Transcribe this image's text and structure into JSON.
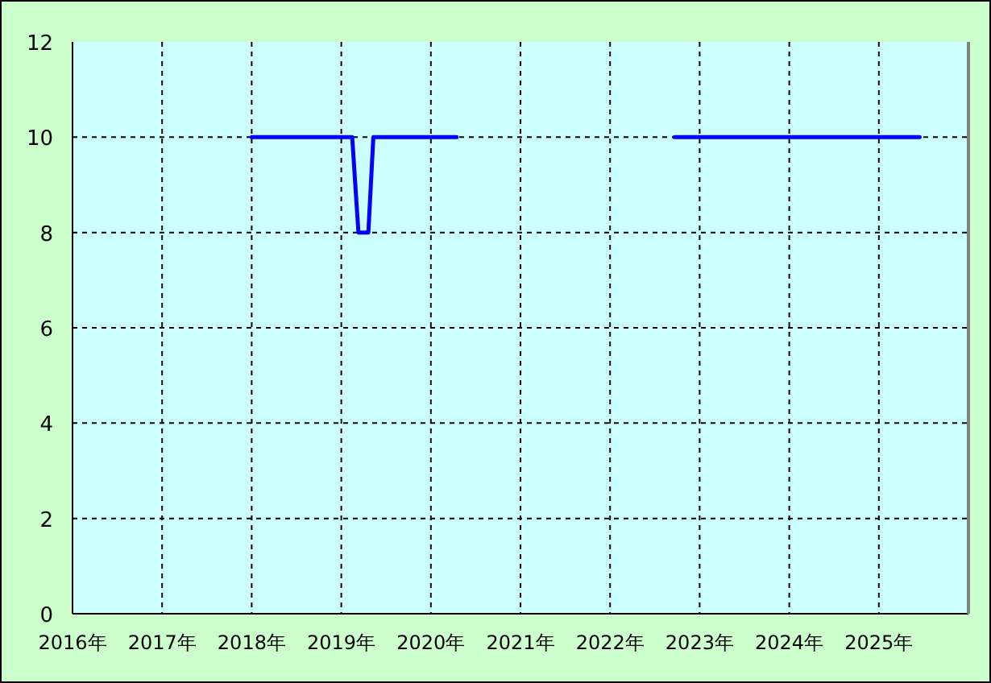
{
  "chart_data": {
    "type": "line",
    "series": [
      {
        "color": "#0000ff",
        "x": [
          "2018-01-01",
          "2019-02-15",
          "2019-03-10",
          "2019-04-20",
          "2019-05-10",
          "2020-04-15"
        ],
        "values": [
          10,
          10,
          8,
          8,
          10,
          10
        ]
      },
      {
        "color": "#0000ff",
        "x": [
          "2022-09-20",
          "2025-06-15"
        ],
        "values": [
          10,
          10
        ]
      }
    ],
    "xlim": [
      "2016",
      "2026"
    ],
    "xticks": [
      {
        "value": "2016",
        "label": "2016年"
      },
      {
        "value": "2017",
        "label": "2017年"
      },
      {
        "value": "2018",
        "label": "2018年"
      },
      {
        "value": "2019",
        "label": "2019年"
      },
      {
        "value": "2020",
        "label": "2020年"
      },
      {
        "value": "2021",
        "label": "2021年"
      },
      {
        "value": "2022",
        "label": "2022年"
      },
      {
        "value": "2023",
        "label": "2023年"
      },
      {
        "value": "2024",
        "label": "2024年"
      },
      {
        "value": "2025",
        "label": "2025年"
      }
    ],
    "ylim": [
      0,
      12
    ],
    "yticks": [
      0,
      2,
      4,
      6,
      8,
      10,
      12
    ],
    "grid": true,
    "marker": "none",
    "line_style": "solid"
  }
}
